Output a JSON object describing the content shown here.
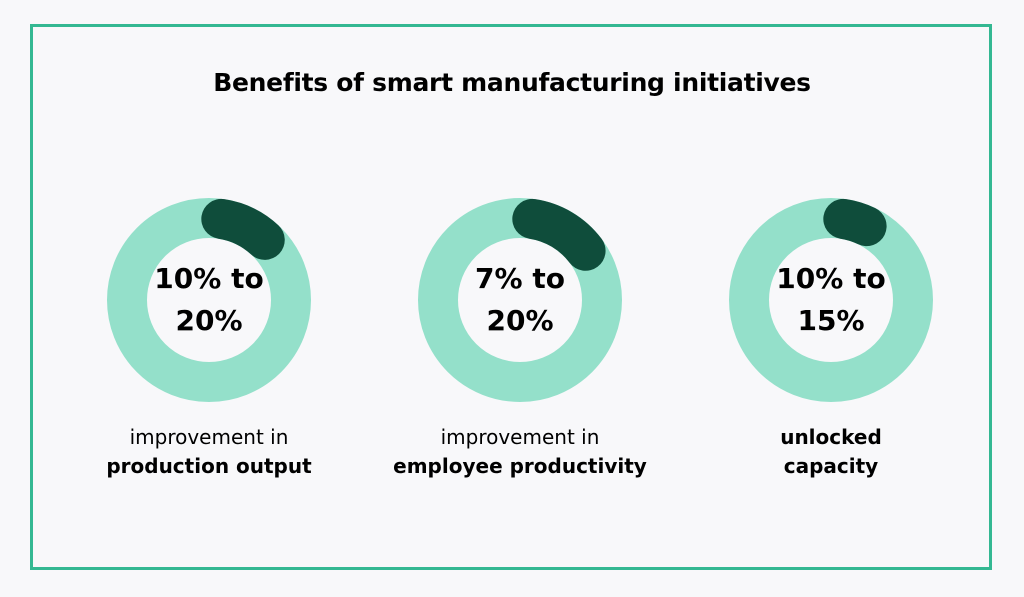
{
  "title": "Benefits of smart manufacturing initiatives",
  "colors": {
    "border": "#34b892",
    "ring": "#94e0ca",
    "highlight": "#0f4d3b"
  },
  "chart_data": [
    {
      "type": "pie",
      "range_text": [
        "10% to",
        "20%"
      ],
      "value_range": [
        10,
        20
      ],
      "caption_plain": "improvement in",
      "caption_bold": "production output"
    },
    {
      "type": "pie",
      "range_text": [
        "7% to",
        "20%"
      ],
      "value_range": [
        7,
        20
      ],
      "caption_plain": "improvement in",
      "caption_bold": "employee productivity"
    },
    {
      "type": "pie",
      "range_text": [
        "10% to",
        "15%"
      ],
      "value_range": [
        10,
        15
      ],
      "caption_plain": "",
      "caption_bold": "unlocked capacity"
    }
  ]
}
